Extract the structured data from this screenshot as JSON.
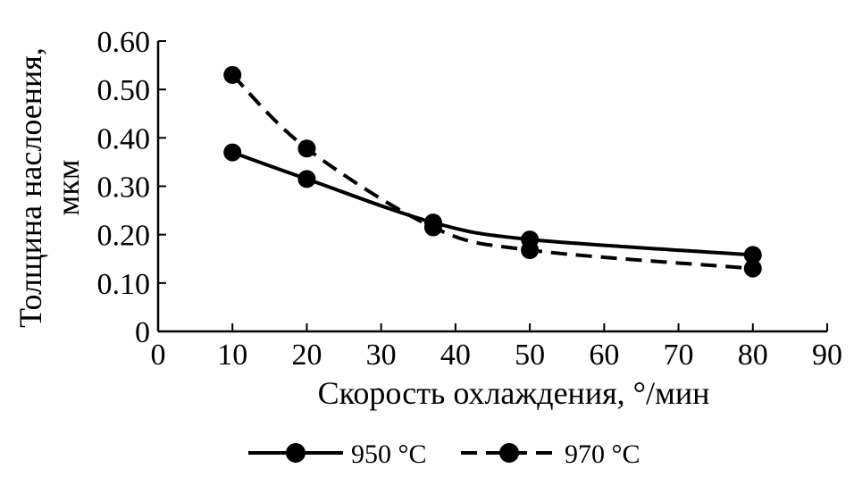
{
  "chart_data": {
    "type": "line",
    "title": "",
    "xlabel": "Скорость охлаждения, °/мин",
    "ylabel_line1": "Толщина наслоения,",
    "ylabel_line2": "мкм",
    "xlim": [
      0,
      90
    ],
    "ylim": [
      0,
      0.6
    ],
    "x_ticks": [
      0,
      10,
      20,
      30,
      40,
      50,
      60,
      70,
      80,
      90
    ],
    "x_tick_labels": [
      "0",
      "10",
      "20",
      "30",
      "40",
      "50",
      "60",
      "70",
      "80",
      "90"
    ],
    "y_ticks": [
      0,
      0.1,
      0.2,
      0.3,
      0.4,
      0.5,
      0.6
    ],
    "y_tick_labels": [
      "0",
      "0.10",
      "0.20",
      "0.30",
      "0.40",
      "0.50",
      "0.60"
    ],
    "grid": false,
    "legend_position": "bottom",
    "series": [
      {
        "name": "950 °C",
        "style": "solid",
        "color": "#000000",
        "x": [
          10,
          20,
          37,
          50,
          80
        ],
        "y": [
          0.37,
          0.315,
          0.225,
          0.19,
          0.158
        ]
      },
      {
        "name": "970 °C",
        "style": "dashed",
        "color": "#000000",
        "x": [
          10,
          20,
          37,
          50,
          80
        ],
        "y": [
          0.53,
          0.378,
          0.215,
          0.168,
          0.13
        ]
      }
    ]
  }
}
